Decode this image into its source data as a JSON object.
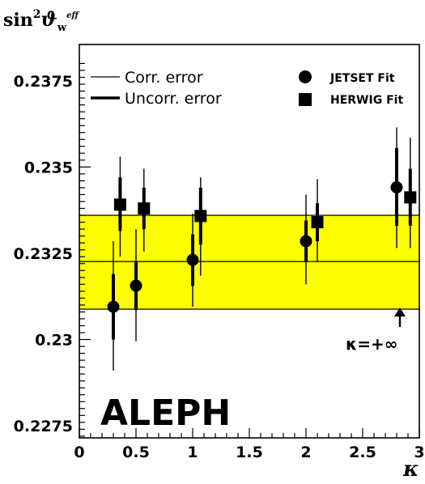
{
  "chart_data": {
    "type": "scatter",
    "ylabel": "sin²ϑw",
    "ylabel_parts": {
      "base": "sin",
      "sup": "2",
      "symbol": "ϑ",
      "sub": "w",
      "sup2": "eff"
    },
    "xlabel": "κ",
    "xlim": [
      0,
      3
    ],
    "ylim": [
      0.22715,
      0.23855
    ],
    "x_ticks": [
      0,
      0.5,
      1,
      1.5,
      2,
      2.5,
      3
    ],
    "x_tick_labels": [
      "0",
      "0.5",
      "1",
      "1.5",
      "2",
      "2.5",
      "3"
    ],
    "y_ticks": [
      0.2275,
      0.23,
      0.2325,
      0.235,
      0.2375
    ],
    "y_tick_labels": [
      "0.2275",
      "0.23",
      "0.2325",
      "0.235",
      "0.2375"
    ],
    "band": {
      "center": 0.23226,
      "low": 0.23088,
      "high": 0.2336,
      "color": "#ffff00"
    },
    "legend": {
      "corr_label": "Corr. error",
      "uncorr_label": "Uncorr. error",
      "jetset_label": "JETSET Fit",
      "herwig_label": "HERWIG Fit"
    },
    "experiment_label": "ALEPH",
    "infinity_label": "κ=+∞",
    "series": [
      {
        "name": "JETSET Fit",
        "marker": "circle",
        "points": [
          {
            "x": 0.3,
            "y": 0.23095,
            "uncorr": [
              0.23,
              0.2319
            ],
            "corr": [
              0.2291,
              0.23285
            ]
          },
          {
            "x": 0.5,
            "y": 0.23156,
            "uncorr": [
              0.23085,
              0.23225
            ],
            "corr": [
              0.22995,
              0.2332
            ]
          },
          {
            "x": 1.0,
            "y": 0.23231,
            "uncorr": [
              0.23155,
              0.23305
            ],
            "corr": [
              0.23095,
              0.23365
            ]
          },
          {
            "x": 2.0,
            "y": 0.23285,
            "uncorr": [
              0.23225,
              0.23345
            ],
            "corr": [
              0.2316,
              0.2342
            ]
          },
          {
            "x": 2.8,
            "y": 0.23441,
            "uncorr": [
              0.2333,
              0.23555
            ],
            "corr": [
              0.23265,
              0.23615
            ]
          }
        ]
      },
      {
        "name": "HERWIG Fit",
        "marker": "square",
        "points": [
          {
            "x": 0.36,
            "y": 0.23391,
            "uncorr": [
              0.23315,
              0.2347
            ],
            "corr": [
              0.2324,
              0.2353
            ]
          },
          {
            "x": 0.57,
            "y": 0.2338,
            "uncorr": [
              0.2332,
              0.2344
            ],
            "corr": [
              0.23255,
              0.23495
            ]
          },
          {
            "x": 1.07,
            "y": 0.23358,
            "uncorr": [
              0.23275,
              0.2344
            ],
            "corr": [
              0.23185,
              0.2347
            ]
          },
          {
            "x": 2.1,
            "y": 0.2334,
            "uncorr": [
              0.23285,
              0.23395
            ],
            "corr": [
              0.23225,
              0.23465
            ]
          },
          {
            "x": 2.92,
            "y": 0.23412,
            "uncorr": [
              0.2333,
              0.23495
            ],
            "corr": [
              0.23265,
              0.23585
            ]
          }
        ]
      }
    ]
  }
}
